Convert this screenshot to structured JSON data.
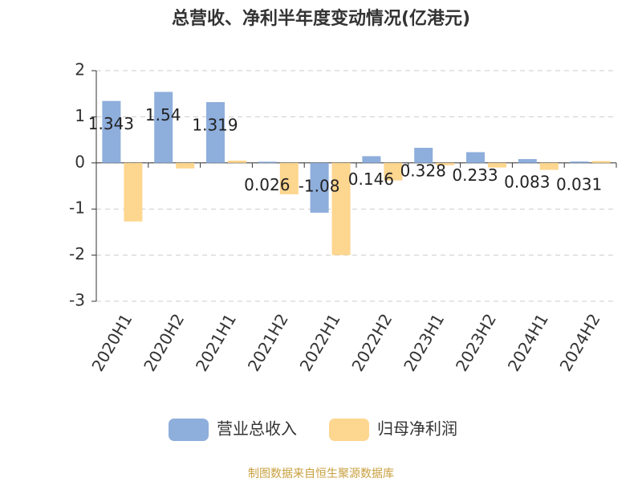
{
  "chart_data": {
    "type": "bar",
    "title": "总营收、净利半年度变动情况(亿港元)",
    "categories": [
      "2020H1",
      "2020H2",
      "2021H1",
      "2021H2",
      "2022H1",
      "2022H2",
      "2023H1",
      "2023H2",
      "2024H1",
      "2024H2"
    ],
    "series": [
      {
        "name": "营业总收入",
        "color": "#8eaedc",
        "values": [
          1.343,
          1.54,
          1.319,
          0.026,
          -1.08,
          0.146,
          0.328,
          0.233,
          0.083,
          0.031
        ]
      },
      {
        "name": "归母净利润",
        "color": "#fdd68f",
        "values": [
          -1.27,
          -0.12,
          0.05,
          -0.68,
          -2.0,
          -0.38,
          -0.05,
          -0.1,
          -0.15,
          0.04
        ]
      }
    ],
    "ylim": [
      -3,
      2
    ],
    "yticks": [
      -3,
      -2,
      -1,
      0,
      1,
      2
    ],
    "grid": true,
    "legend": "bottom",
    "source": "制图数据来自恒生聚源数据库"
  }
}
